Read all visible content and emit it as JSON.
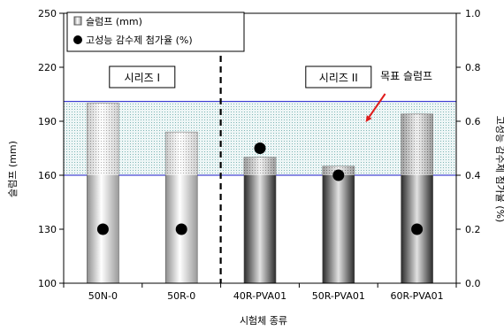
{
  "chart_data": {
    "type": "bar",
    "categories": [
      "50N-0",
      "50R-0",
      "40R-PVA01",
      "50R-PVA01",
      "60R-PVA01"
    ],
    "xlabel": "시험체 종류",
    "ylabel": "슬럼프 (mm)",
    "y2label": "고성능 감수제 첨가율 (%)",
    "ylim": [
      100,
      250
    ],
    "yticks": [
      "100",
      "130",
      "160",
      "190",
      "220",
      "250"
    ],
    "y2lim": [
      0.0,
      1.0
    ],
    "y2ticks": [
      "0.0",
      "0.2",
      "0.4",
      "0.6",
      "0.8",
      "1.0"
    ],
    "series": [
      {
        "name": "슬럼프 (mm)",
        "axis": "left",
        "type": "bar",
        "values": [
          200,
          184,
          170,
          165,
          194
        ]
      },
      {
        "name": "고성능 감수제 첨가율 (%)",
        "axis": "right",
        "type": "scatter",
        "values": [
          0.2,
          0.2,
          0.5,
          0.4,
          0.2
        ]
      }
    ],
    "target_band": {
      "label": "목표 슬럼프",
      "y_range": [
        160,
        201
      ]
    },
    "groups": [
      {
        "label": "시리즈 I",
        "first": 0,
        "last": 1,
        "style": "light"
      },
      {
        "label": "시리즈 II",
        "first": 2,
        "last": 4,
        "style": "dark"
      }
    ],
    "legend_position": "top-left",
    "colors": {
      "band_fill": "#eaf8f8",
      "band_border": "#1c1ccc",
      "arrow": "#e01b1b",
      "marker": "#000000"
    }
  }
}
